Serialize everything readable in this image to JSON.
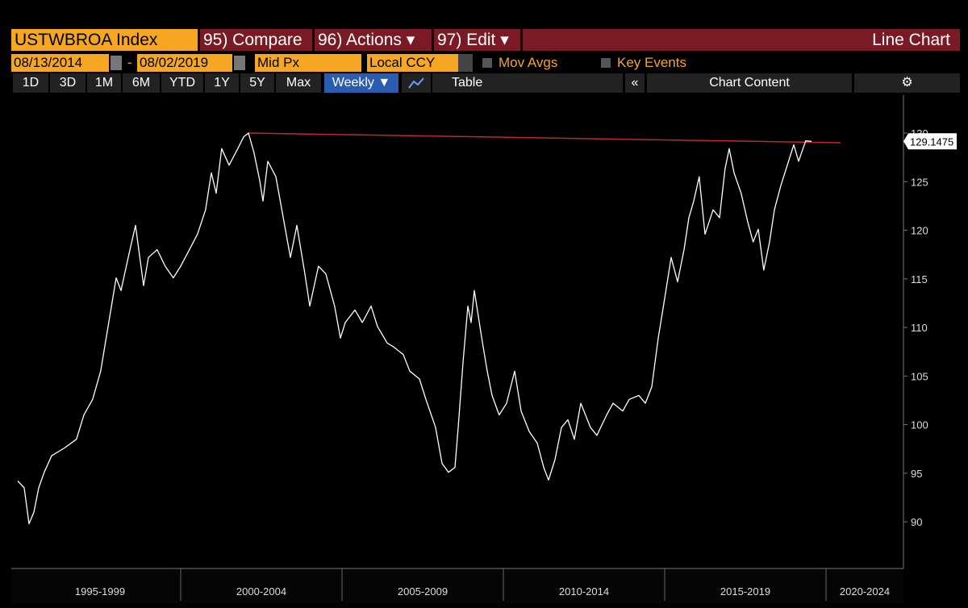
{
  "toolbar": {
    "ticker": "USTWBROA Index",
    "compare": "95) Compare",
    "actions": "96) Actions ▾",
    "edit": "97) Edit ▾",
    "view": "Line Chart",
    "start_date": "08/13/2014",
    "dash": "-",
    "end_date": "08/02/2019",
    "price": "Mid Px",
    "currency": "Local CCY",
    "mov_avgs": "Mov Avgs",
    "key_events": "Key Events",
    "ranges": [
      "1D",
      "3D",
      "1M",
      "6M",
      "YTD",
      "1Y",
      "5Y",
      "Max"
    ],
    "frequency": "Weekly ▼",
    "table": "Table",
    "collapse": "«",
    "chart_content": "Chart Content"
  },
  "chart_data": {
    "type": "line",
    "x": [
      1994.95,
      1995.15,
      1995.3,
      1995.45,
      1995.6,
      1995.77,
      1996.0,
      1996.4,
      1996.77,
      1997.0,
      1997.27,
      1997.52,
      1997.77,
      1998.0,
      1998.15,
      1998.4,
      1998.6,
      1998.85,
      1999.0,
      1999.27,
      1999.52,
      1999.77,
      2000.0,
      2000.27,
      2000.52,
      2000.77,
      2000.95,
      2001.1,
      2001.27,
      2001.5,
      2001.77,
      2001.95,
      2002.1,
      2002.27,
      2002.45,
      2002.55,
      2002.7,
      2002.95,
      2003.2,
      2003.4,
      2003.6,
      2003.85,
      2004.0,
      2004.27,
      2004.5,
      2004.77,
      2004.95,
      2005.1,
      2005.4,
      2005.63,
      2005.9,
      2006.1,
      2006.4,
      2006.6,
      2006.9,
      2007.1,
      2007.4,
      2007.6,
      2007.9,
      2008.1,
      2008.3,
      2008.5,
      2008.6,
      2008.75,
      2008.9,
      2009.0,
      2009.1,
      2009.33,
      2009.5,
      2009.65,
      2009.87,
      2010.1,
      2010.35,
      2010.55,
      2010.8,
      2011.05,
      2011.25,
      2011.4,
      2011.6,
      2011.8,
      2012.0,
      2012.2,
      2012.4,
      2012.7,
      2012.9,
      2013.2,
      2013.4,
      2013.7,
      2013.9,
      2014.2,
      2014.4,
      2014.6,
      2014.8,
      2015.0,
      2015.2,
      2015.4,
      2015.6,
      2015.75,
      2015.9,
      2016.07,
      2016.25,
      2016.5,
      2016.7,
      2016.87,
      2017.0,
      2017.15,
      2017.37,
      2017.57,
      2017.74,
      2017.9,
      2018.07,
      2018.25,
      2018.4,
      2018.6,
      2018.8,
      2019.0,
      2019.15,
      2019.37,
      2019.55
    ],
    "series": [
      {
        "color": "#ffffff",
        "values": [
          94.2,
          93.5,
          89.8,
          91.0,
          93.5,
          95.1,
          96.8,
          97.6,
          98.5,
          101.0,
          102.6,
          105.5,
          110.5,
          115.1,
          113.8,
          117.6,
          120.5,
          114.3,
          117.2,
          118.0,
          116.3,
          115.1,
          116.3,
          118.0,
          119.6,
          122.1,
          125.9,
          123.8,
          128.4,
          126.7,
          128.4,
          129.6,
          130.0,
          128.0,
          125.1,
          123.0,
          127.1,
          125.5,
          120.9,
          117.2,
          120.5,
          115.5,
          112.2,
          116.3,
          115.5,
          112.2,
          108.9,
          110.5,
          111.8,
          110.5,
          112.2,
          110.1,
          108.4,
          108.0,
          107.2,
          105.5,
          104.7,
          102.6,
          99.7,
          96.0,
          95.1,
          95.6,
          99.7,
          106.4,
          112.2,
          110.5,
          113.8,
          108.9,
          105.5,
          103.0,
          101.0,
          102.2,
          105.5,
          101.4,
          99.3,
          98.1,
          95.6,
          94.3,
          96.4,
          99.7,
          100.5,
          98.5,
          102.2,
          99.7,
          98.9,
          101.0,
          102.2,
          101.4,
          102.6,
          103.0,
          102.2,
          103.9,
          108.9,
          113.0,
          117.2,
          114.7,
          118.0,
          121.3,
          123.0,
          125.5,
          119.6,
          122.1,
          121.3,
          126.3,
          128.4,
          125.9,
          123.8,
          120.9,
          118.8,
          120.1,
          115.9,
          118.8,
          122.1,
          124.6,
          126.7,
          128.8,
          127.1,
          129.2,
          129.1475
        ]
      }
    ],
    "last_value": 129.1475,
    "trendline": {
      "x": [
        2002.1,
        2020.45
      ],
      "values": [
        130.0,
        129.0
      ],
      "color": "#c0282d"
    },
    "xlim": [
      1994.75,
      2022.4
    ],
    "xticks": [
      {
        "value": 1997.5,
        "label": "1995-1999"
      },
      {
        "value": 2002.5,
        "label": "2000-2004"
      },
      {
        "value": 2007.5,
        "label": "2005-2009"
      },
      {
        "value": 2012.5,
        "label": "2010-2014"
      },
      {
        "value": 2017.5,
        "label": "2015-2019"
      },
      {
        "value": 2021.2,
        "label": "2020-2024"
      }
    ],
    "xgrid": [
      2000,
      2005,
      2010,
      2015,
      2020
    ],
    "ylim": [
      85.2,
      133.9
    ],
    "yticks": [
      90,
      95,
      100,
      105,
      110,
      115,
      120,
      125,
      130
    ]
  }
}
